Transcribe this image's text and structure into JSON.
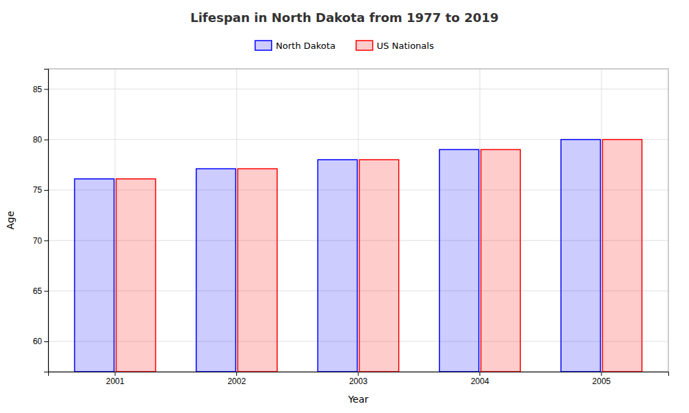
{
  "chart_data": {
    "type": "bar",
    "title": "Lifespan in North Dakota from 1977 to 2019",
    "xlabel": "Year",
    "ylabel": "Age",
    "categories": [
      "2001",
      "2002",
      "2003",
      "2004",
      "2005"
    ],
    "series": [
      {
        "name": "North Dakota",
        "color": "#0000ff",
        "values": [
          76.1,
          77.1,
          78.0,
          79.0,
          80.0
        ]
      },
      {
        "name": "US Nationals",
        "color": "#ff0000",
        "values": [
          76.1,
          77.1,
          78.0,
          79.0,
          80.0
        ]
      }
    ],
    "ylim": [
      57,
      87
    ],
    "yticks": [
      60,
      65,
      70,
      75,
      80,
      85
    ],
    "grid": true,
    "legend": "top"
  }
}
